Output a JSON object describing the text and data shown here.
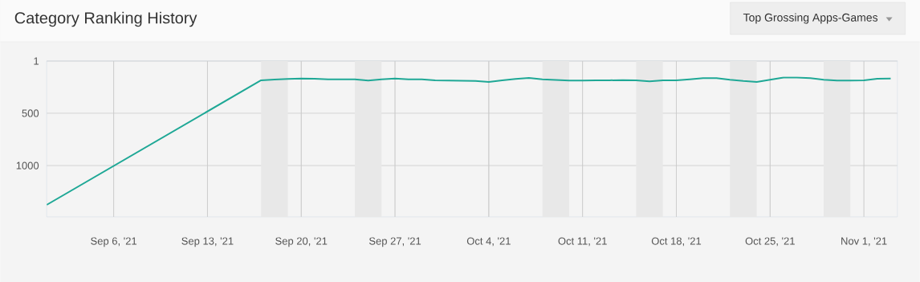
{
  "chart_data": {
    "type": "line",
    "title": "Category Ranking History",
    "annotations": [
      "Top Grossing Apps-Games"
    ],
    "x": [
      "2021-09-01",
      "2021-09-17",
      "2021-09-18",
      "2021-09-19",
      "2021-09-20",
      "2021-09-21",
      "2021-09-22",
      "2021-09-23",
      "2021-09-24",
      "2021-09-25",
      "2021-09-26",
      "2021-09-27",
      "2021-09-28",
      "2021-09-29",
      "2021-09-30",
      "2021-10-01",
      "2021-10-02",
      "2021-10-03",
      "2021-10-04",
      "2021-10-05",
      "2021-10-06",
      "2021-10-07",
      "2021-10-08",
      "2021-10-09",
      "2021-10-10",
      "2021-10-11",
      "2021-10-12",
      "2021-10-13",
      "2021-10-14",
      "2021-10-15",
      "2021-10-16",
      "2021-10-17",
      "2021-10-18",
      "2021-10-19",
      "2021-10-20",
      "2021-10-21",
      "2021-10-22",
      "2021-10-23",
      "2021-10-24",
      "2021-10-25",
      "2021-10-26",
      "2021-10-27",
      "2021-10-28",
      "2021-10-29",
      "2021-10-30",
      "2021-10-31",
      "2021-11-01",
      "2021-11-02",
      "2021-11-03"
    ],
    "series": [
      {
        "color": "#1fa896",
        "values": [
          1375,
          185,
          178,
          172,
          168,
          170,
          175,
          175,
          176,
          187,
          175,
          168,
          175,
          175,
          185,
          187,
          190,
          192,
          200,
          185,
          172,
          162,
          175,
          182,
          187,
          187,
          185,
          185,
          183,
          185,
          195,
          186,
          185,
          175,
          165,
          165,
          180,
          192,
          201,
          180,
          158,
          158,
          165,
          180,
          187,
          187,
          185,
          170,
          168
        ]
      }
    ],
    "xlim": [
      "2021-09-01",
      "2021-11-03T12:00"
    ],
    "ylim": [
      1490,
      1
    ],
    "xticks": [
      {
        "value": "2021-09-06",
        "label": "Sep 6, '21"
      },
      {
        "value": "2021-09-13",
        "label": "Sep 13, '21"
      },
      {
        "value": "2021-09-20",
        "label": "Sep 20, '21"
      },
      {
        "value": "2021-09-27",
        "label": "Sep 27, '21"
      },
      {
        "value": "2021-10-04",
        "label": "Oct 4, '21"
      },
      {
        "value": "2021-10-11",
        "label": "Oct 11, '21"
      },
      {
        "value": "2021-10-18",
        "label": "Oct 18, '21"
      },
      {
        "value": "2021-10-25",
        "label": "Oct 25, '21"
      },
      {
        "value": "2021-11-01",
        "label": "Nov 1, '21"
      }
    ],
    "yticks": [
      1,
      500,
      1000
    ],
    "bands": [
      {
        "axis": "x",
        "from": "2021-09-17",
        "to": "2021-09-19",
        "color": "#e8e8e8"
      },
      {
        "axis": "x",
        "from": "2021-09-24",
        "to": "2021-09-26",
        "color": "#e8e8e8"
      },
      {
        "axis": "x",
        "from": "2021-10-08",
        "to": "2021-10-10",
        "color": "#e8e8e8"
      },
      {
        "axis": "x",
        "from": "2021-10-15",
        "to": "2021-10-17",
        "color": "#e8e8e8"
      },
      {
        "axis": "x",
        "from": "2021-10-22",
        "to": "2021-10-24",
        "color": "#e8e8e8"
      },
      {
        "axis": "x",
        "from": "2021-10-29",
        "to": "2021-10-31",
        "color": "#e8e8e8"
      }
    ],
    "grid": true,
    "marker": "none",
    "line_style": "solid"
  }
}
